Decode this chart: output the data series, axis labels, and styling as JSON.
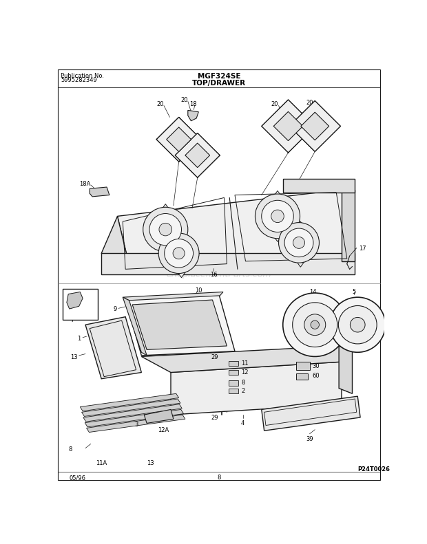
{
  "title_model": "MGF324SE",
  "title_section": "TOP/DRAWER",
  "pub_label": "Publication No.",
  "pub_number": "5995282349",
  "date_code": "05/96",
  "page_number": "8",
  "watermark": "eReplacementParts.com",
  "part_code": "P24T0026",
  "bg_color": "#ffffff",
  "text_color": "#000000",
  "lc": "#1a1a1a",
  "figsize": [
    6.2,
    7.91
  ],
  "dpi": 100
}
